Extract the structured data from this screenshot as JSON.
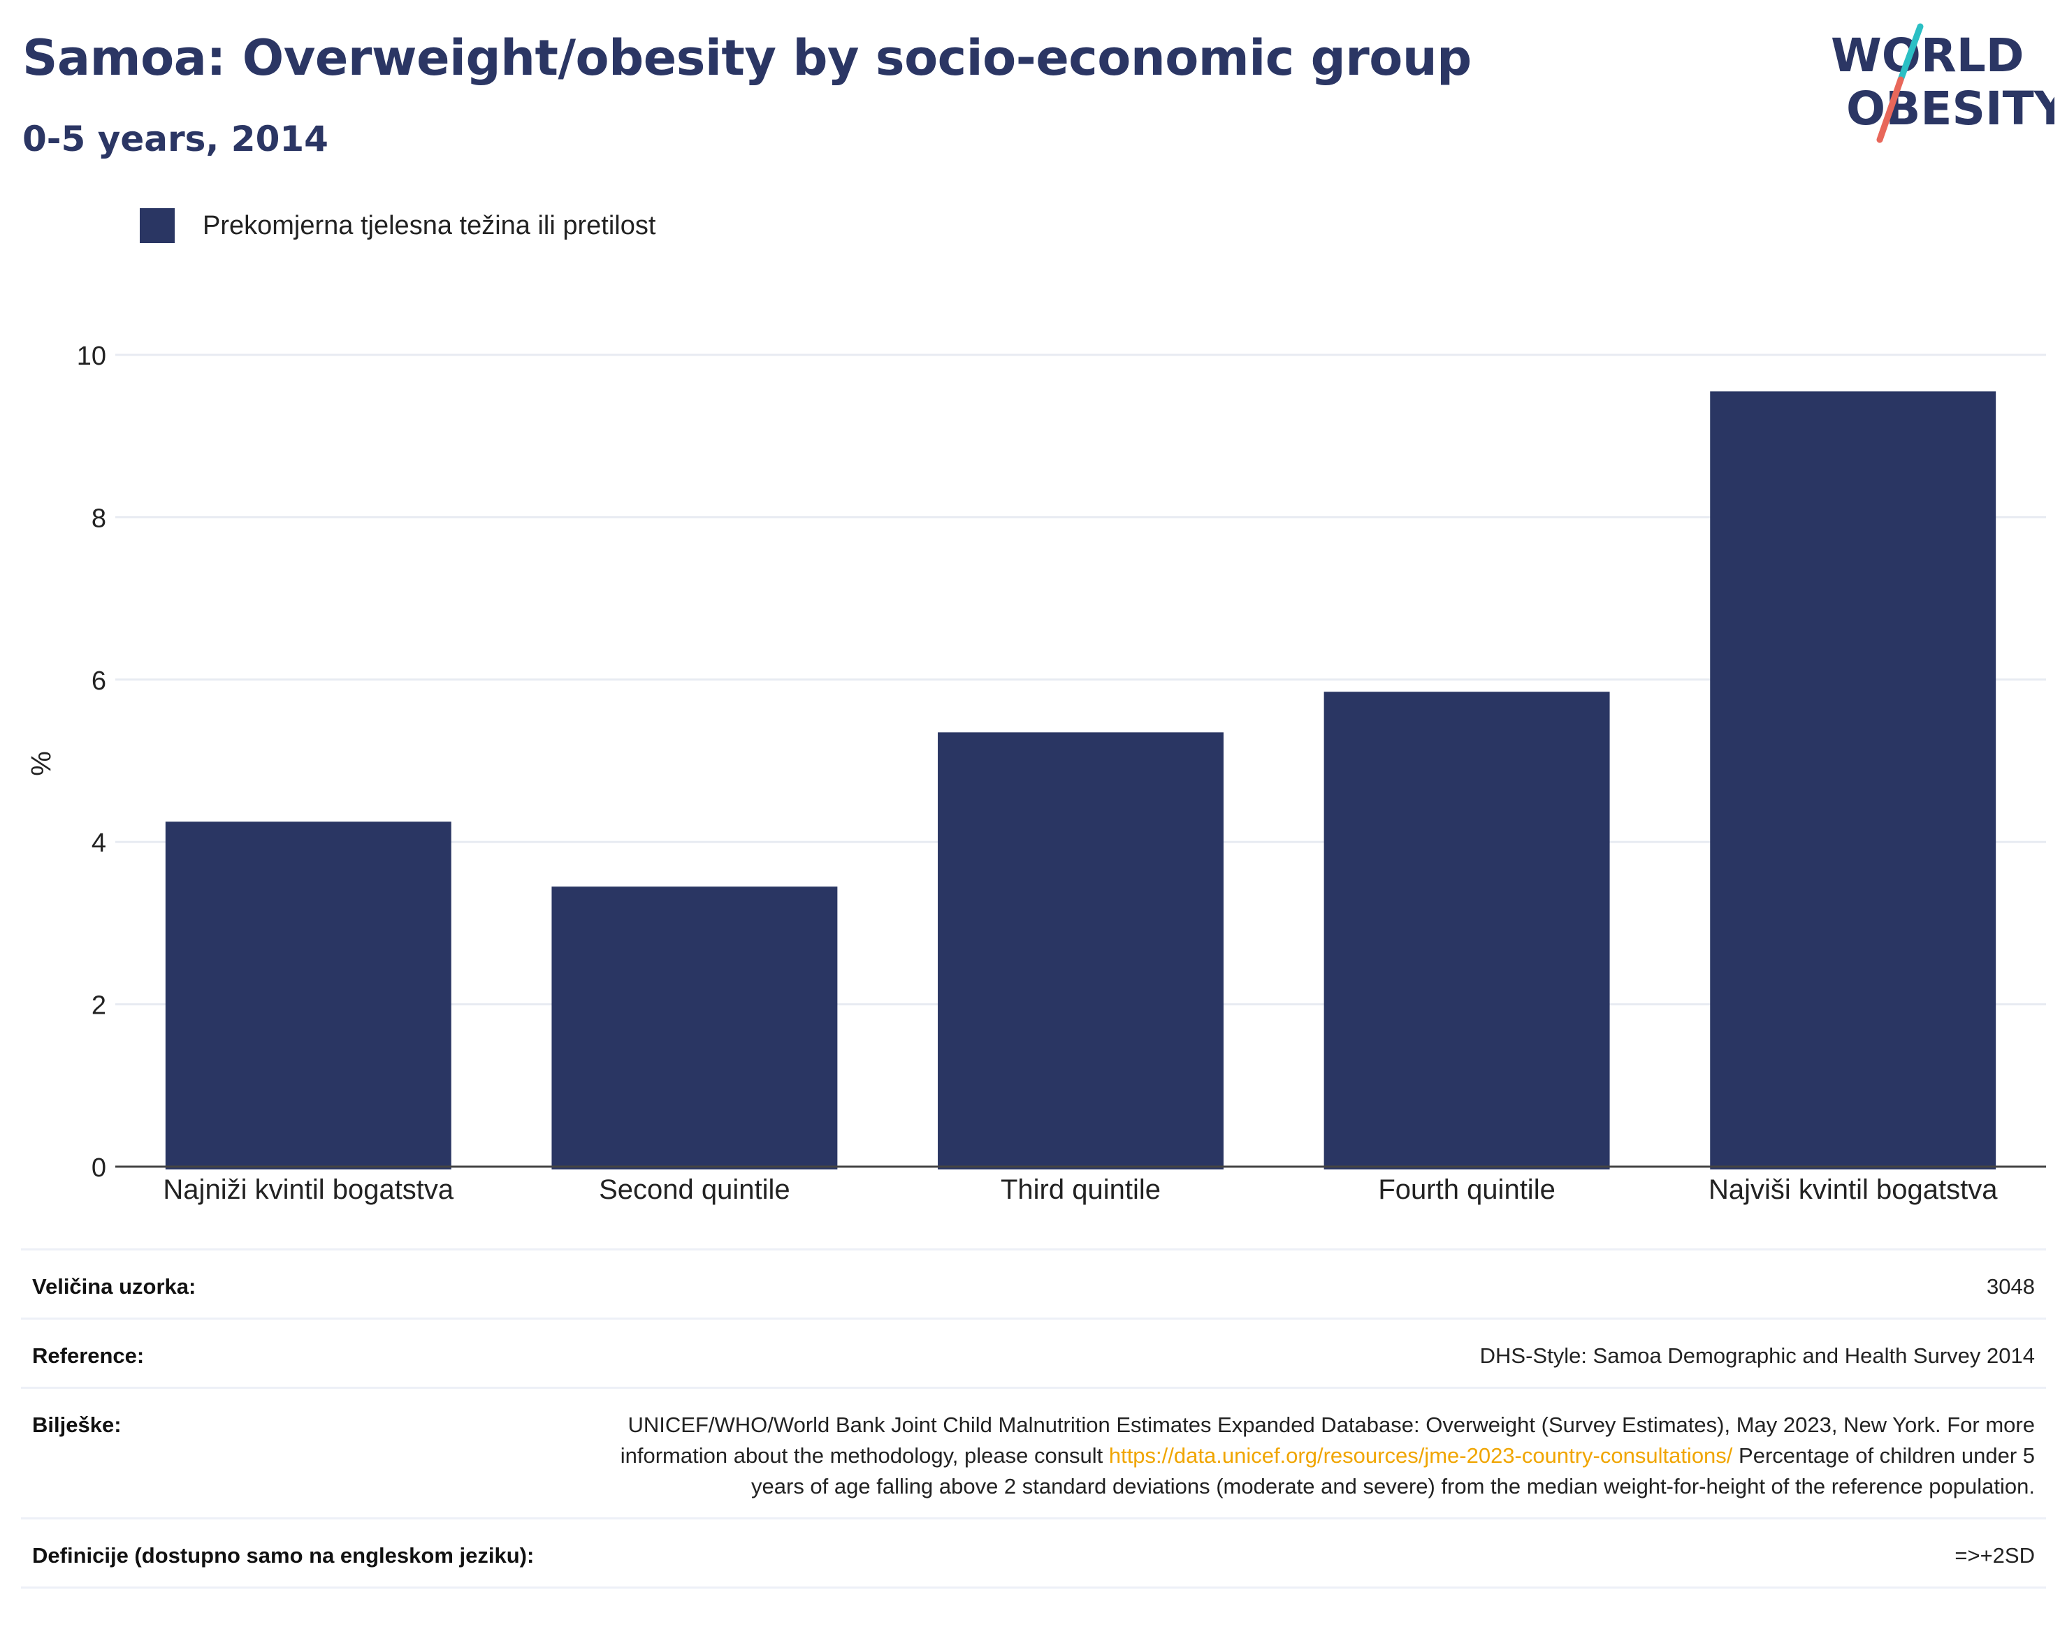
{
  "header": {
    "title": "Samoa: Overweight/obesity by socio-economic group",
    "subtitle": "0-5 years, 2014"
  },
  "logo": {
    "line1": "WORLD",
    "line2": "OBESITY",
    "accent_teal": "#2bbfc4",
    "accent_coral": "#e8675a"
  },
  "colors": {
    "bar": "#2a3663",
    "title": "#2b3664",
    "grid": "#e8ebf2",
    "link": "#f0a500"
  },
  "chart_data": {
    "type": "bar",
    "categories": [
      "Najniži kvintil bogatstva",
      "Second quintile",
      "Third quintile",
      "Fourth quintile",
      "Najviši kvintil bogatstva"
    ],
    "series": [
      {
        "name": "Prekomjerna tjelesna težina ili pretilost",
        "values": [
          4.25,
          3.45,
          5.35,
          5.85,
          9.55
        ]
      }
    ],
    "ylabel": "%",
    "ylim": [
      0,
      10
    ],
    "yticks": [
      0,
      2,
      4,
      6,
      8,
      10
    ],
    "grid": true,
    "legend": "top-left"
  },
  "meta": {
    "sample_label": "Veličina uzorka:",
    "sample_value": "3048",
    "reference_label": "Reference:",
    "reference_value": "DHS-Style: Samoa Demographic and Health Survey 2014",
    "notes_label": "Bilješke:",
    "notes_text1": "UNICEF/WHO/World Bank Joint Child Malnutrition Estimates Expanded Database: Overweight (Survey Estimates), May 2023, New York. For more information about the methodology, please consult",
    "notes_link": "https://data.unicef.org/resources/jme-2023-country-consultations/",
    "notes_text2": "Percentage of children under 5 years of age falling above 2 standard deviations (moderate and severe) from the median weight-for-height of the reference population.",
    "definitions_label": "Definicije (dostupno samo na engleskom jeziku):",
    "definitions_value": "=>+2SD"
  }
}
